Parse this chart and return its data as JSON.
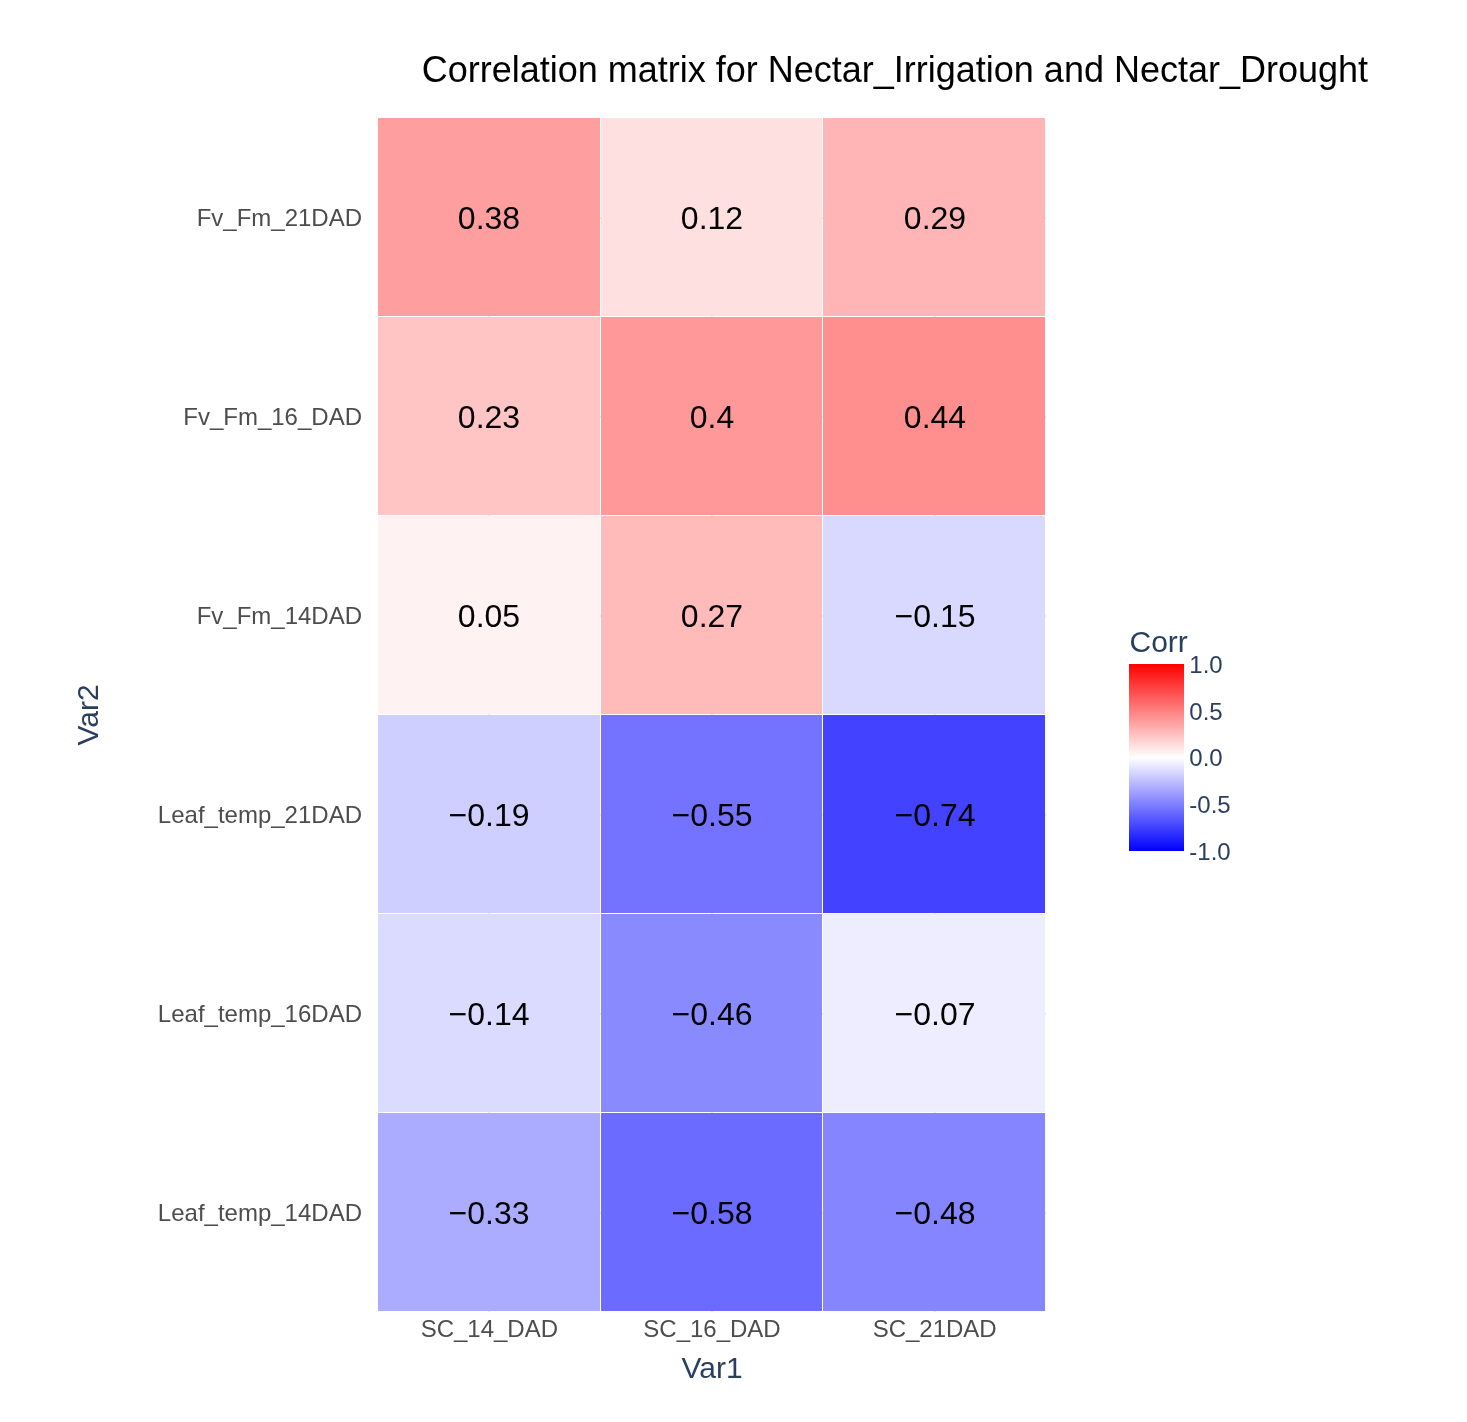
{
  "chart_data": {
    "type": "heatmap",
    "title": "Correlation matrix for Nectar_Irrigation and Nectar_Drought",
    "xlabel": "Var1",
    "ylabel": "Var2",
    "clabel": "Corr",
    "categories": [
      "SC_14_DAD",
      "SC_16_DAD",
      "SC_21DAD"
    ],
    "y_categories": [
      "Fv_Fm_21DAD",
      "Fv_Fm_16_DAD",
      "Fv_Fm_14DAD",
      "Leaf_temp_21DAD",
      "Leaf_temp_16DAD",
      "Leaf_temp_14DAD"
    ],
    "cells": [
      [
        0.38,
        0.12,
        0.29
      ],
      [
        0.23,
        0.4,
        0.44
      ],
      [
        0.05,
        0.27,
        -0.15
      ],
      [
        -0.19,
        -0.55,
        -0.74
      ],
      [
        -0.14,
        -0.46,
        -0.07
      ],
      [
        -0.33,
        -0.58,
        -0.48
      ]
    ],
    "clim": [
      -1,
      1
    ],
    "cticks": [
      {
        "value": -1,
        "label": "-1.0"
      },
      {
        "value": -0.5,
        "label": "-0.5"
      },
      {
        "value": 0,
        "label": "0.0"
      },
      {
        "value": 0.5,
        "label": "0.5"
      },
      {
        "value": 1,
        "label": "1.0"
      }
    ],
    "data_labels": true,
    "grid": true
  }
}
